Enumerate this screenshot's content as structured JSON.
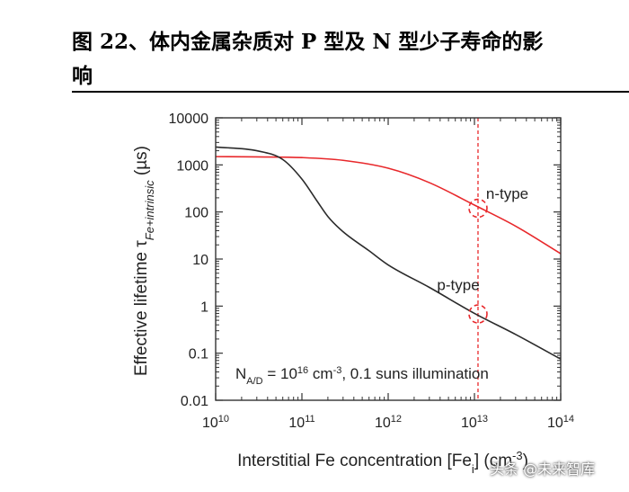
{
  "caption": {
    "line1": "图 22、体内金属杂质对 P 型及 N 型少子寿命的影",
    "line2": "响"
  },
  "watermark": {
    "text": "头条 @未来智库"
  },
  "colors": {
    "n_type": "#e8282b",
    "p_type": "#2b2b2b",
    "reference_line": "#e8282b"
  },
  "chart_data": {
    "type": "line",
    "xscale": "log",
    "yscale": "log",
    "xlim": [
      10000000000.0,
      100000000000000.0
    ],
    "ylim": [
      0.01,
      10000
    ],
    "x_ticks": [
      {
        "value": 10000000000.0,
        "base": "10",
        "exp": "10"
      },
      {
        "value": 100000000000.0,
        "base": "10",
        "exp": "11"
      },
      {
        "value": 1000000000000.0,
        "base": "10",
        "exp": "12"
      },
      {
        "value": 10000000000000.0,
        "base": "10",
        "exp": "13"
      },
      {
        "value": 100000000000000.0,
        "base": "10",
        "exp": "14"
      }
    ],
    "y_ticks": [
      {
        "value": 10000,
        "label": "10000"
      },
      {
        "value": 1000,
        "label": "1000"
      },
      {
        "value": 100,
        "label": "100"
      },
      {
        "value": 10,
        "label": "10"
      },
      {
        "value": 1,
        "label": "1"
      },
      {
        "value": 0.1,
        "label": "0.1"
      },
      {
        "value": 0.01,
        "label": "0.01"
      }
    ],
    "xlabel": "Interstitial Fe concentration [Fe",
    "xlabel_sub": "i",
    "xlabel_tail": "] (cm",
    "xlabel_sup": "-3",
    "xlabel_close": ")",
    "ylabel_prefix": "Effective lifetime τ",
    "ylabel_sub": "Fe+intrinsic",
    "ylabel_unit": " (µs)",
    "grid": false,
    "series": [
      {
        "name": "n-type",
        "x": [
          10000000000.0,
          30000000000.0,
          100000000000.0,
          300000000000.0,
          1000000000000.0,
          3000000000000.0,
          10000000000000.0,
          30000000000000.0,
          100000000000000.0
        ],
        "y": [
          1500,
          1480,
          1430,
          1250,
          850,
          420,
          140,
          50,
          13
        ]
      },
      {
        "name": "p-type",
        "x": [
          10000000000.0,
          30000000000.0,
          60000000000.0,
          100000000000.0,
          150000000000.0,
          200000000000.0,
          300000000000.0,
          600000000000.0,
          1000000000000.0,
          3000000000000.0,
          10000000000000.0,
          30000000000000.0,
          100000000000000.0
        ],
        "y": [
          2400,
          2000,
          1300,
          500,
          170,
          80,
          38,
          15,
          7.5,
          2.5,
          0.7,
          0.25,
          0.075
        ]
      }
    ],
    "reference_line": {
      "x": 11000000000000.0
    },
    "markers": [
      {
        "series": "n-type",
        "x": 11000000000000.0,
        "y": 120
      },
      {
        "series": "p-type",
        "x": 11000000000000.0,
        "y": 0.68
      }
    ],
    "series_labels": [
      {
        "text": "n-type",
        "x": 24000000000000.0,
        "y": 190
      },
      {
        "text": "p-type",
        "x": 6500000000000.0,
        "y": 2.2
      }
    ],
    "annotation": {
      "prefix": "N",
      "sub": "A/D",
      "mid": " = 10",
      "sup": "16",
      "unit": " cm",
      "unit_sup": "-3",
      "tail": ", 0.1 suns illumination"
    }
  }
}
